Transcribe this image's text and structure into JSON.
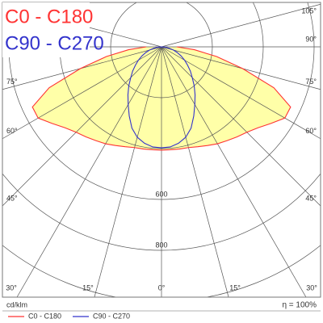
{
  "chart_data": {
    "type": "polar",
    "unit": "cd/klm",
    "efficiency": "η = 100%",
    "angles": [
      0,
      5,
      10,
      15,
      20,
      25,
      30,
      35,
      40,
      45,
      50,
      55,
      60,
      65,
      70,
      75,
      80,
      85,
      90
    ],
    "series": [
      {
        "name": "C0 - C180",
        "color": "#ff3333",
        "fill": "#ffff99",
        "values": [
          406,
          406,
          408,
          410,
          418,
          428,
          440,
          450,
          462,
          475,
          495,
          525,
          560,
          560,
          470,
          330,
          220,
          130,
          60
        ]
      },
      {
        "name": "C90 - C270",
        "color": "#3333cc",
        "values": [
          397,
          395,
          385,
          368,
          340,
          300,
          262,
          230,
          200,
          171,
          148,
          125,
          105,
          85,
          66,
          48,
          30,
          14,
          0
        ]
      }
    ],
    "rlim": [
      0,
      1000
    ],
    "rticks": [
      {
        "value": 200,
        "label": null
      },
      {
        "value": 400,
        "label": null
      },
      600,
      800,
      {
        "value": 1000,
        "label": null
      }
    ],
    "angle_ticks": [
      {
        "value": -75,
        "label": "75°"
      },
      {
        "value": -60,
        "label": "60°"
      },
      {
        "value": -45,
        "label": "45°"
      },
      {
        "value": -30,
        "label": "30°"
      },
      {
        "value": -15,
        "label": "15°"
      },
      {
        "value": 0,
        "label": "0°"
      },
      {
        "value": 15,
        "label": "15°"
      },
      {
        "value": 30,
        "label": "30°"
      },
      {
        "value": 45,
        "label": "45°"
      },
      {
        "value": 60,
        "label": "60°"
      },
      {
        "value": 75,
        "label": "75°"
      },
      {
        "value": 90,
        "label": "90°"
      },
      {
        "value": 105,
        "label": "105°"
      }
    ]
  }
}
